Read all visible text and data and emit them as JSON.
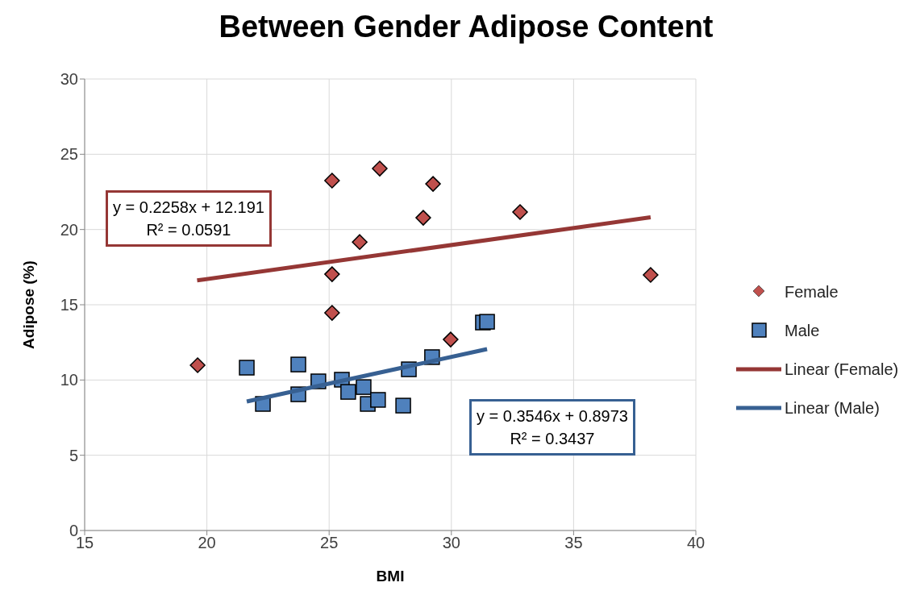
{
  "chart_data": {
    "type": "scatter",
    "title": "Between Gender Adipose Content",
    "xlabel": "BMI",
    "ylabel": "Adipose (%)",
    "xlim": [
      15,
      40
    ],
    "xticks": [
      15,
      20,
      25,
      30,
      35,
      40
    ],
    "ylim": [
      0,
      30
    ],
    "yticks": [
      0,
      5,
      10,
      15,
      20,
      25,
      30
    ],
    "grid": true,
    "legend": "right",
    "annotations": [
      "y = 0.2258x + 12.191\nR² = 0.0591",
      "y = 0.3546x + 0.8973\nR² = 0.3437"
    ],
    "series": [
      {
        "name": "Female",
        "marker": "diamond",
        "color": "#c0504d",
        "x": [
          19.62,
          25.12,
          27.07,
          29.25,
          28.85,
          32.81,
          26.25,
          25.12,
          25.12,
          29.97,
          38.15
        ],
        "values": [
          10.98,
          23.25,
          24.05,
          23.03,
          20.78,
          21.16,
          19.17,
          17.03,
          14.46,
          12.69,
          16.98
        ]
      },
      {
        "name": "Male",
        "marker": "square",
        "color": "#4f81bd",
        "x": [
          21.63,
          22.29,
          23.74,
          23.74,
          24.56,
          25.52,
          25.78,
          26.41,
          26.58,
          27.0,
          28.03,
          28.26,
          29.21,
          31.29,
          31.46
        ],
        "values": [
          10.82,
          8.41,
          11.03,
          9.05,
          9.91,
          10.02,
          9.21,
          9.53,
          8.41,
          8.68,
          8.3,
          10.71,
          11.52,
          13.82,
          13.87
        ]
      },
      {
        "name": "Linear (Female)",
        "type": "line",
        "marker": "none",
        "color": "#953735",
        "x": [
          19.6,
          38.15
        ],
        "values": [
          16.62,
          20.81
        ]
      },
      {
        "name": "Linear (Male)",
        "type": "line",
        "marker": "none",
        "color": "#376092",
        "x": [
          21.63,
          31.46
        ],
        "values": [
          8.57,
          12.05
        ]
      }
    ]
  }
}
